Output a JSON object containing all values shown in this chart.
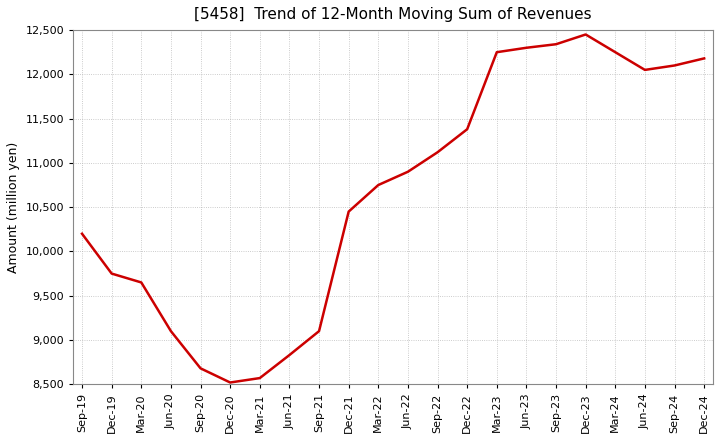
{
  "title": "[5458]  Trend of 12-Month Moving Sum of Revenues",
  "ylabel": "Amount (million yen)",
  "ylim": [
    8500,
    12500
  ],
  "yticks": [
    8500,
    9000,
    9500,
    10000,
    10500,
    11000,
    11500,
    12000,
    12500
  ],
  "line_color": "#cc0000",
  "bg_color": "#ffffff",
  "grid_color": "#aaaaaa",
  "x_labels": [
    "Sep-19",
    "Dec-19",
    "Mar-20",
    "Jun-20",
    "Sep-20",
    "Dec-20",
    "Mar-21",
    "Jun-21",
    "Sep-21",
    "Dec-21",
    "Mar-22",
    "Jun-22",
    "Sep-22",
    "Dec-22",
    "Mar-23",
    "Jun-23",
    "Sep-23",
    "Dec-23",
    "Mar-24",
    "Jun-24",
    "Sep-24",
    "Dec-24"
  ],
  "values": [
    10200,
    9750,
    9650,
    9100,
    8680,
    8520,
    8570,
    8830,
    9100,
    10450,
    10750,
    10900,
    11120,
    11380,
    12250,
    12300,
    12340,
    12450,
    12250,
    12050,
    12100,
    12180
  ]
}
